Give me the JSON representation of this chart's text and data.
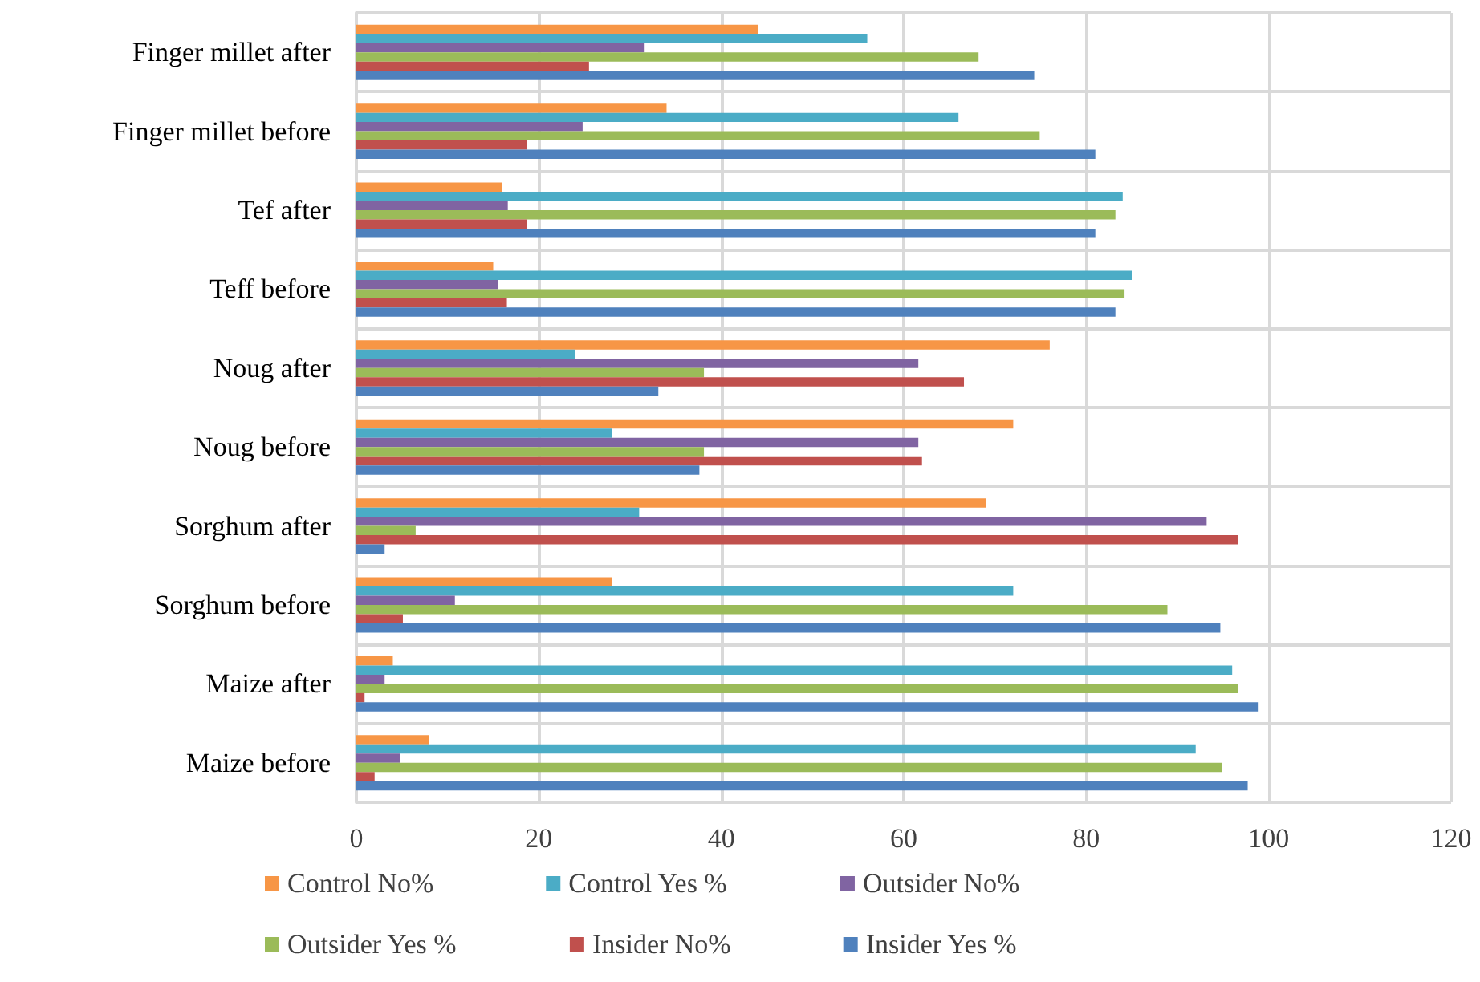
{
  "chart_data": {
    "type": "bar",
    "orientation": "horizontal",
    "categories": [
      "Finger millet after",
      "Finger millet before",
      "Tef after",
      "Teff before",
      "Noug after",
      "Noug before",
      "Sorghum after",
      "Sorghum before",
      "Maize after",
      "Maize before"
    ],
    "series": [
      {
        "name": "Control No%",
        "color": "#f79646",
        "values": [
          44,
          34,
          16,
          15,
          76,
          72,
          69,
          28,
          4,
          8
        ]
      },
      {
        "name": "Control Yes %",
        "color": "#4bacc6",
        "values": [
          56,
          66,
          84,
          85,
          24,
          28,
          31,
          72,
          96,
          92
        ]
      },
      {
        "name": "Outsider No%",
        "color": "#8064a2",
        "values": [
          31.6,
          24.8,
          16.6,
          15.5,
          61.6,
          61.6,
          93.2,
          10.8,
          3.1,
          4.8
        ]
      },
      {
        "name": "Outsider Yes %",
        "color": "#9bbb59",
        "values": [
          68.2,
          74.9,
          83.2,
          84.2,
          38.1,
          38.1,
          6.5,
          88.9,
          96.6,
          94.9
        ]
      },
      {
        "name": "Insider No%",
        "color": "#c0504d",
        "values": [
          25.5,
          18.7,
          18.7,
          16.5,
          66.6,
          62,
          96.6,
          5.1,
          0.9,
          2
        ]
      },
      {
        "name": "Insider Yes %",
        "color": "#4f81bd",
        "values": [
          74.3,
          81,
          81,
          83.2,
          33.1,
          37.6,
          3.1,
          94.7,
          98.9,
          97.7
        ]
      }
    ],
    "xlim": [
      0,
      120
    ],
    "xticks": [
      0,
      20,
      40,
      60,
      80,
      100,
      120
    ],
    "grid": true,
    "legend": "bottom"
  }
}
